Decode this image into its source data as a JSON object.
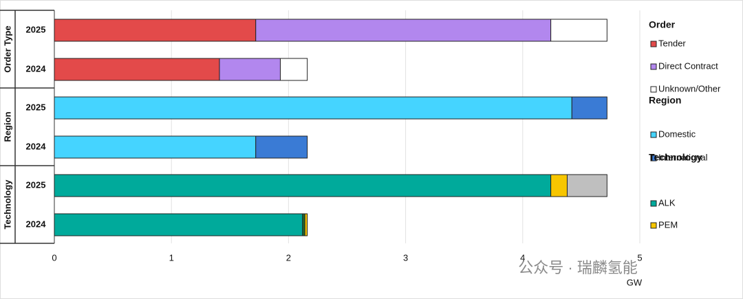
{
  "chart_data": [
    {
      "type": "bar",
      "orientation": "horizontal",
      "group": "Order Type",
      "legend_title": "Order",
      "categories": [
        "2025",
        "2024"
      ],
      "xlim": [
        0,
        5
      ],
      "series": [
        {
          "name": "Tender",
          "color": "#e34a4a",
          "values": [
            1.72,
            1.41
          ]
        },
        {
          "name": "Direct Contract",
          "color": "#b287ee",
          "values": [
            2.52,
            0.52
          ]
        },
        {
          "name": "Unknown/Other",
          "color": "#ffffff",
          "values": [
            0.48,
            0.23
          ]
        }
      ]
    },
    {
      "type": "bar",
      "orientation": "horizontal",
      "group": "Region",
      "legend_title": "Region",
      "categories": [
        "2025",
        "2024"
      ],
      "xlim": [
        0,
        5
      ],
      "series": [
        {
          "name": "Domestic",
          "color": "#45d4ff",
          "values": [
            4.42,
            1.72
          ]
        },
        {
          "name": "International",
          "color": "#3a7bd5",
          "values": [
            0.3,
            0.44
          ]
        }
      ]
    },
    {
      "type": "bar",
      "orientation": "horizontal",
      "group": "Technology",
      "legend_title": "Technology",
      "categories": [
        "2025",
        "2024"
      ],
      "xlim": [
        0,
        5
      ],
      "xticks": [
        0,
        1,
        2,
        3,
        4,
        5
      ],
      "xlabel": "GW",
      "grid": true,
      "series": [
        {
          "name": "ALK",
          "color": "#00aa9b",
          "values": [
            4.24,
            2.12
          ]
        },
        {
          "color": "#1f6b2d",
          "values": [
            null,
            0.02
          ]
        },
        {
          "name": "PEM",
          "color": "#f7c600",
          "values": [
            0.14,
            0.02
          ]
        },
        {
          "color": "#bfbfbf",
          "values": [
            0.34,
            null
          ]
        }
      ]
    }
  ],
  "watermark": "公众号 · 瑞麟氢能"
}
